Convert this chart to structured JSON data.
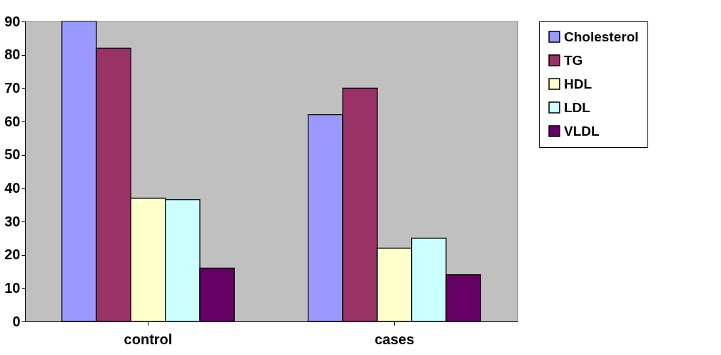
{
  "chart_data": {
    "type": "bar",
    "categories": [
      "control",
      "cases"
    ],
    "series": [
      {
        "name": "Cholesterol",
        "color": "#9999ff",
        "values": [
          90,
          62
        ]
      },
      {
        "name": "TG",
        "color": "#993366",
        "values": [
          82,
          70
        ]
      },
      {
        "name": "HDL",
        "color": "#ffffcc",
        "values": [
          37,
          22
        ]
      },
      {
        "name": "LDL",
        "color": "#ccffff",
        "values": [
          36.5,
          25
        ]
      },
      {
        "name": "VLDL",
        "color": "#660066",
        "values": [
          16,
          14
        ]
      }
    ],
    "ylim": [
      0,
      90
    ],
    "yticks": [
      0,
      10,
      20,
      30,
      40,
      50,
      60,
      70,
      80,
      90
    ],
    "grid": false,
    "legend": "right"
  }
}
